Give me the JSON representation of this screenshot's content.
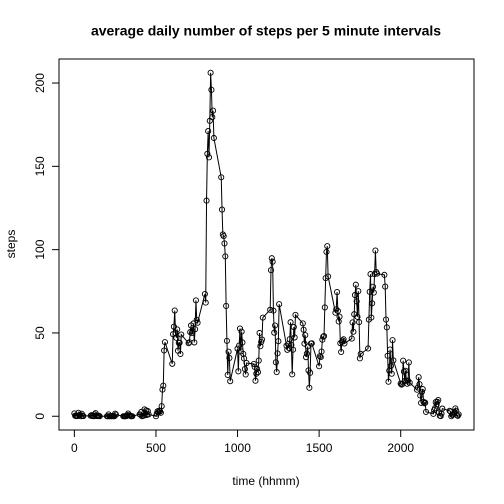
{
  "chart_data": {
    "type": "line",
    "title": "average daily number of steps per 5 minute intervals",
    "xlabel": "time (hhmm)",
    "ylabel": "steps",
    "x": [
      0,
      5,
      10,
      15,
      20,
      25,
      30,
      35,
      40,
      45,
      50,
      55,
      100,
      105,
      110,
      115,
      120,
      125,
      130,
      135,
      140,
      145,
      150,
      155,
      200,
      205,
      210,
      215,
      220,
      225,
      230,
      235,
      240,
      245,
      250,
      255,
      300,
      305,
      310,
      315,
      320,
      325,
      330,
      335,
      340,
      345,
      350,
      355,
      400,
      405,
      410,
      415,
      420,
      425,
      430,
      435,
      440,
      445,
      450,
      455,
      500,
      505,
      510,
      515,
      520,
      525,
      530,
      535,
      540,
      545,
      550,
      555,
      600,
      605,
      610,
      615,
      620,
      625,
      630,
      635,
      640,
      645,
      650,
      655,
      700,
      705,
      710,
      715,
      720,
      725,
      730,
      735,
      740,
      745,
      750,
      755,
      800,
      805,
      810,
      815,
      820,
      825,
      830,
      835,
      840,
      845,
      850,
      855,
      900,
      905,
      910,
      915,
      920,
      925,
      930,
      935,
      940,
      945,
      950,
      955,
      1000,
      1005,
      1010,
      1015,
      1020,
      1025,
      1030,
      1035,
      1040,
      1045,
      1050,
      1055,
      1100,
      1105,
      1110,
      1115,
      1120,
      1125,
      1130,
      1135,
      1140,
      1145,
      1150,
      1155,
      1200,
      1205,
      1210,
      1215,
      1220,
      1225,
      1230,
      1235,
      1240,
      1245,
      1250,
      1255,
      1300,
      1305,
      1310,
      1315,
      1320,
      1325,
      1330,
      1335,
      1340,
      1345,
      1350,
      1355,
      1400,
      1405,
      1410,
      1415,
      1420,
      1425,
      1430,
      1435,
      1440,
      1445,
      1450,
      1455,
      1500,
      1505,
      1510,
      1515,
      1520,
      1525,
      1530,
      1535,
      1540,
      1545,
      1550,
      1555,
      1600,
      1605,
      1610,
      1615,
      1620,
      1625,
      1630,
      1635,
      1640,
      1645,
      1650,
      1655,
      1700,
      1705,
      1710,
      1715,
      1720,
      1725,
      1730,
      1735,
      1740,
      1745,
      1750,
      1755,
      1800,
      1805,
      1810,
      1815,
      1820,
      1825,
      1830,
      1835,
      1840,
      1845,
      1850,
      1855,
      1900,
      1905,
      1910,
      1915,
      1920,
      1925,
      1930,
      1935,
      1940,
      1945,
      1950,
      1955,
      2000,
      2005,
      2010,
      2015,
      2020,
      2025,
      2030,
      2035,
      2040,
      2045,
      2050,
      2055,
      2100,
      2105,
      2110,
      2115,
      2120,
      2125,
      2130,
      2135,
      2140,
      2145,
      2150,
      2155,
      2200,
      2205,
      2210,
      2215,
      2220,
      2225,
      2230,
      2235,
      2240,
      2245,
      2250,
      2255,
      2300,
      2305,
      2310,
      2315,
      2320,
      2325,
      2330,
      2335,
      2340,
      2345,
      2350,
      2355
    ],
    "series": [
      {
        "name": "steps",
        "color": "#000000",
        "values": [
          1.72,
          0.34,
          0.13,
          0.15,
          0.08,
          2.09,
          0.53,
          0.87,
          0,
          1.47,
          0.3,
          0.13,
          0.32,
          0.68,
          0.15,
          0.34,
          0,
          1.11,
          1.83,
          0.17,
          0.17,
          0.38,
          0.26,
          0,
          0,
          0,
          1.13,
          0,
          0,
          0.13,
          0,
          0.23,
          0,
          0,
          1.55,
          0.94,
          0,
          0,
          0,
          0,
          0.21,
          0.62,
          1.62,
          0.58,
          0.49,
          0.08,
          0,
          0,
          1.19,
          0.94,
          2.57,
          0,
          0.34,
          0.36,
          4.11,
          0.66,
          3.49,
          0.83,
          3.11,
          1.11,
          0,
          1.57,
          3,
          2.25,
          3.32,
          2.96,
          2.09,
          6.06,
          16.02,
          18.34,
          39.45,
          44.49,
          31.49,
          49.26,
          53.77,
          63.45,
          49.96,
          47.08,
          52.15,
          39.34,
          44.02,
          44.17,
          37.36,
          49.04,
          43.81,
          44.38,
          50.51,
          54.51,
          49.92,
          50.98,
          55.68,
          44.32,
          52.26,
          69.55,
          57.85,
          56.15,
          73.38,
          68.21,
          129.43,
          157.53,
          171.15,
          155.4,
          177.3,
          206.17,
          195.92,
          179.57,
          183.4,
          167.02,
          143.45,
          124.04,
          109.11,
          108.11,
          103.72,
          95.96,
          66.21,
          45.23,
          24.79,
          38.75,
          34.98,
          21.06,
          40.57,
          26.98,
          42.42,
          52.66,
          38.92,
          50.79,
          44.28,
          37.42,
          34.7,
          28.34,
          25.09,
          31.94,
          31.36,
          29.68,
          21.32,
          25.55,
          28.38,
          26.47,
          33.43,
          49.98,
          42.04,
          44.6,
          46.04,
          59.19,
          63.87,
          87.7,
          94.85,
          92.77,
          63.4,
          50.17,
          54.47,
          32.42,
          26.53,
          37.74,
          45.06,
          67.28,
          42.34,
          39.89,
          43.26,
          40.98,
          46.25,
          56.43,
          42.75,
          25.13,
          39.96,
          53.55,
          47.32,
          60.81,
          55.75,
          51.96,
          43.58,
          48.7,
          35.47,
          37.55,
          41.85,
          27.51,
          17.11,
          26.08,
          43.62,
          43.77,
          30.02,
          36.08,
          35.49,
          38.85,
          45.96,
          47.75,
          48.13,
          65.32,
          82.91,
          98.66,
          102.11,
          83.96,
          62.13,
          64.13,
          74.55,
          63.17,
          56.91,
          59.77,
          43.87,
          38.57,
          44.66,
          45.45,
          46.21,
          43.68,
          46.62,
          56.3,
          50.72,
          61.23,
          72.72,
          78.94,
          68.94,
          59.66,
          75.09,
          56.51,
          34.77,
          37.45,
          40.68,
          58.02,
          74.7,
          85.32,
          59.26,
          67.77,
          77.7,
          74.25,
          85.34,
          99.45,
          86.58,
          85.6,
          84.87,
          77.83,
          58.04,
          53.36,
          36.32,
          20.72,
          27.4,
          40.02,
          30.21,
          25.55,
          45.66,
          33.53,
          19.62,
          19.02,
          19.34,
          33.34,
          26.81,
          21.17,
          27.3,
          21.34,
          19.55,
          21.32,
          32.3,
          20.15,
          15.94,
          17.23,
          23.45,
          19.25,
          12.45,
          8.02,
          14.66,
          16.3,
          8.68,
          7.79,
          8.13,
          2.62,
          1.45,
          3.68,
          4.81,
          8.51,
          7.08,
          8.7,
          9.75,
          2.21,
          0.32,
          0.11,
          1.6,
          4.6,
          3.3,
          2.85,
          0,
          0.83,
          0.96,
          1.58,
          2.6,
          4.7,
          3.3,
          0.64,
          0.23,
          1.08
        ]
      }
    ],
    "xlim": [
      -94.2,
      2449.2
    ],
    "ylim": [
      -8.25,
      214.42
    ],
    "xticks": [
      0,
      500,
      1000,
      1500,
      2000
    ],
    "yticks": [
      0,
      50,
      100,
      150,
      200
    ]
  }
}
